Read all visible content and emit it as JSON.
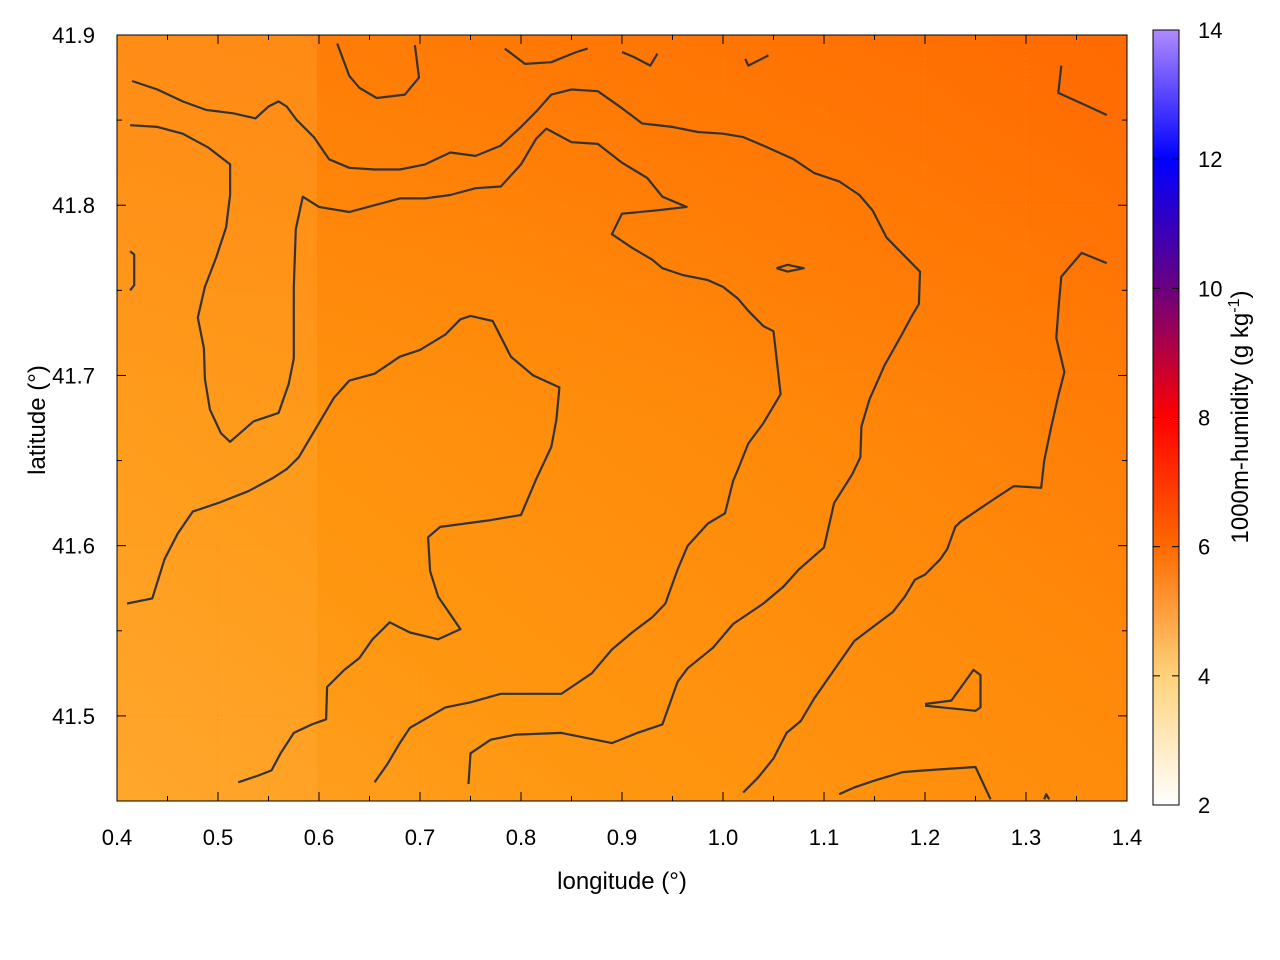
{
  "chart_data": {
    "type": "heatmap",
    "title": "",
    "xlabel": "longitude (°)",
    "ylabel": "latitude (°)",
    "colorbar_label_main": "1000m-humidity (g kg",
    "colorbar_label_exp": "-1",
    "colorbar_label_end": ")",
    "xlim": [
      0.4,
      1.4
    ],
    "ylim": [
      41.45,
      41.9
    ],
    "x_ticks": [
      0.4,
      0.5,
      0.6,
      0.7,
      0.8,
      0.9,
      1.0,
      1.1,
      1.2,
      1.3,
      1.4
    ],
    "x_tick_labels": [
      "0.4",
      "0.5",
      "0.6",
      "0.7",
      "0.8",
      "0.9",
      "1.0",
      "1.1",
      "1.2",
      "1.3",
      "1.4"
    ],
    "y_ticks": [
      41.5,
      41.6,
      41.7,
      41.8,
      41.9
    ],
    "y_tick_labels": [
      "41.5",
      "41.6",
      "41.7",
      "41.8",
      "41.9"
    ],
    "colorbar_range": [
      2,
      14
    ],
    "colorbar_ticks": [
      2,
      4,
      6,
      8,
      10,
      12,
      14
    ],
    "colorbar_tick_labels": [
      "2",
      "4",
      "6",
      "8",
      "10",
      "12",
      "14"
    ],
    "grid": true,
    "colors": {
      "scale": [
        "#ffffff",
        "#ffb000",
        "#ff6a00",
        "#ff0000",
        "#6a0080",
        "#0000ff",
        "#b888ff"
      ],
      "contour": "#333333",
      "grid": "#a0a0a0"
    },
    "field_description_samples": [
      {
        "lon": 0.42,
        "lat": 41.6,
        "value": 4.8
      },
      {
        "lon": 0.55,
        "lat": 41.5,
        "value": 5.0
      },
      {
        "lon": 0.75,
        "lat": 41.7,
        "value": 5.8
      },
      {
        "lon": 1.0,
        "lat": 41.85,
        "value": 6.5
      },
      {
        "lon": 1.3,
        "lat": 41.85,
        "value": 6.6
      },
      {
        "lon": 1.3,
        "lat": 41.5,
        "value": 6.2
      }
    ],
    "contours": [
      [
        [
          0.415,
          41.873
        ],
        [
          0.44,
          41.868
        ],
        [
          0.465,
          41.861
        ],
        [
          0.488,
          41.856
        ],
        [
          0.515,
          41.854
        ],
        [
          0.537,
          41.851
        ],
        [
          0.55,
          41.858
        ],
        [
          0.56,
          41.861
        ],
        [
          0.568,
          41.858
        ],
        [
          0.578,
          41.85
        ],
        [
          0.595,
          41.84
        ],
        [
          0.61,
          41.827
        ],
        [
          0.63,
          41.822
        ],
        [
          0.655,
          41.821
        ],
        [
          0.68,
          41.821
        ],
        [
          0.705,
          41.824
        ],
        [
          0.73,
          41.831
        ],
        [
          0.755,
          41.829
        ],
        [
          0.78,
          41.835
        ],
        [
          0.8,
          41.846
        ],
        [
          0.815,
          41.855
        ],
        [
          0.83,
          41.865
        ],
        [
          0.85,
          41.868
        ],
        [
          0.876,
          41.867
        ],
        [
          0.9,
          41.857
        ],
        [
          0.92,
          41.848
        ],
        [
          0.95,
          41.846
        ],
        [
          0.975,
          41.843
        ],
        [
          1.0,
          41.842
        ],
        [
          1.02,
          41.84
        ],
        [
          1.04,
          41.835
        ],
        [
          1.07,
          41.827
        ],
        [
          1.09,
          41.819
        ],
        [
          1.115,
          41.814
        ],
        [
          1.135,
          41.806
        ],
        [
          1.148,
          41.797
        ],
        [
          1.162,
          41.781
        ],
        [
          1.185,
          41.767
        ],
        [
          1.195,
          41.761
        ],
        [
          1.194,
          41.742
        ],
        [
          1.186,
          41.734
        ],
        [
          1.177,
          41.724
        ],
        [
          1.16,
          41.706
        ],
        [
          1.145,
          41.686
        ],
        [
          1.137,
          41.67
        ],
        [
          1.136,
          41.652
        ],
        [
          1.128,
          41.642
        ],
        [
          1.11,
          41.625
        ],
        [
          1.1,
          41.599
        ],
        [
          1.075,
          41.586
        ],
        [
          1.06,
          41.576
        ],
        [
          1.04,
          41.566
        ],
        [
          1.01,
          41.554
        ],
        [
          0.99,
          41.54
        ],
        [
          0.965,
          41.528
        ],
        [
          0.955,
          41.52
        ],
        [
          0.94,
          41.495
        ],
        [
          0.915,
          41.49
        ],
        [
          0.89,
          41.484
        ],
        [
          0.84,
          41.49
        ],
        [
          0.795,
          41.489
        ],
        [
          0.77,
          41.486
        ],
        [
          0.75,
          41.478
        ],
        [
          0.748,
          41.46
        ]
      ],
      [
        [
          0.413,
          41.847
        ],
        [
          0.44,
          41.846
        ],
        [
          0.465,
          41.842
        ],
        [
          0.49,
          41.834
        ],
        [
          0.512,
          41.824
        ],
        [
          0.512,
          41.806
        ],
        [
          0.508,
          41.787
        ],
        [
          0.498,
          41.769
        ],
        [
          0.487,
          41.752
        ],
        [
          0.48,
          41.734
        ],
        [
          0.486,
          41.716
        ],
        [
          0.487,
          41.698
        ],
        [
          0.492,
          41.68
        ],
        [
          0.503,
          41.666
        ],
        [
          0.512,
          41.661
        ],
        [
          0.535,
          41.673
        ],
        [
          0.56,
          41.678
        ],
        [
          0.57,
          41.695
        ],
        [
          0.575,
          41.71
        ],
        [
          0.575,
          41.752
        ],
        [
          0.577,
          41.786
        ],
        [
          0.584,
          41.805
        ],
        [
          0.6,
          41.799
        ],
        [
          0.63,
          41.796
        ],
        [
          0.655,
          41.8
        ],
        [
          0.68,
          41.804
        ],
        [
          0.705,
          41.804
        ],
        [
          0.73,
          41.806
        ],
        [
          0.755,
          41.81
        ],
        [
          0.78,
          41.811
        ],
        [
          0.8,
          41.824
        ],
        [
          0.815,
          41.839
        ],
        [
          0.825,
          41.845
        ],
        [
          0.85,
          41.837
        ],
        [
          0.876,
          41.836
        ],
        [
          0.9,
          41.825
        ],
        [
          0.925,
          41.816
        ],
        [
          0.94,
          41.805
        ],
        [
          0.964,
          41.799
        ],
        [
          0.935,
          41.797
        ],
        [
          0.9,
          41.795
        ],
        [
          0.89,
          41.783
        ],
        [
          0.91,
          41.775
        ],
        [
          0.93,
          41.768
        ],
        [
          0.94,
          41.763
        ],
        [
          0.96,
          41.759
        ],
        [
          0.985,
          41.756
        ],
        [
          1.0,
          41.752
        ],
        [
          1.015,
          41.745
        ],
        [
          1.025,
          41.738
        ],
        [
          1.04,
          41.729
        ],
        [
          1.05,
          41.726
        ],
        [
          1.057,
          41.689
        ],
        [
          1.04,
          41.672
        ],
        [
          1.025,
          41.66
        ],
        [
          1.015,
          41.645
        ],
        [
          1.01,
          41.638
        ],
        [
          1.002,
          41.619
        ],
        [
          0.985,
          41.613
        ],
        [
          0.965,
          41.6
        ],
        [
          0.955,
          41.586
        ],
        [
          0.943,
          41.566
        ],
        [
          0.93,
          41.558
        ],
        [
          0.91,
          41.549
        ],
        [
          0.89,
          41.539
        ],
        [
          0.87,
          41.525
        ],
        [
          0.85,
          41.517
        ],
        [
          0.84,
          41.513
        ],
        [
          0.78,
          41.513
        ],
        [
          0.75,
          41.508
        ],
        [
          0.725,
          41.505
        ],
        [
          0.69,
          41.493
        ],
        [
          0.68,
          41.484
        ],
        [
          0.668,
          41.472
        ],
        [
          0.655,
          41.461
        ]
      ],
      [
        [
          0.41,
          41.566
        ],
        [
          0.435,
          41.569
        ],
        [
          0.447,
          41.592
        ],
        [
          0.46,
          41.607
        ],
        [
          0.475,
          41.62
        ],
        [
          0.5,
          41.625
        ],
        [
          0.53,
          41.632
        ],
        [
          0.555,
          41.64
        ],
        [
          0.568,
          41.645
        ],
        [
          0.58,
          41.652
        ],
        [
          0.6,
          41.672
        ],
        [
          0.615,
          41.687
        ],
        [
          0.63,
          41.697
        ],
        [
          0.655,
          41.701
        ],
        [
          0.68,
          41.711
        ],
        [
          0.7,
          41.715
        ],
        [
          0.725,
          41.724
        ],
        [
          0.74,
          41.733
        ],
        [
          0.75,
          41.735
        ],
        [
          0.772,
          41.732
        ],
        [
          0.79,
          41.711
        ],
        [
          0.812,
          41.7
        ],
        [
          0.838,
          41.693
        ],
        [
          0.835,
          41.674
        ],
        [
          0.83,
          41.658
        ],
        [
          0.815,
          41.639
        ],
        [
          0.8,
          41.618
        ],
        [
          0.77,
          41.615
        ],
        [
          0.745,
          41.613
        ],
        [
          0.72,
          41.611
        ],
        [
          0.708,
          41.605
        ],
        [
          0.71,
          41.585
        ],
        [
          0.718,
          41.57
        ],
        [
          0.74,
          41.551
        ],
        [
          0.718,
          41.545
        ],
        [
          0.69,
          41.549
        ],
        [
          0.67,
          41.555
        ],
        [
          0.653,
          41.545
        ],
        [
          0.64,
          41.534
        ],
        [
          0.625,
          41.527
        ],
        [
          0.608,
          41.517
        ],
        [
          0.607,
          41.498
        ],
        [
          0.593,
          41.495
        ],
        [
          0.575,
          41.49
        ],
        [
          0.562,
          41.478
        ],
        [
          0.553,
          41.468
        ],
        [
          0.54,
          41.465
        ],
        [
          0.52,
          41.461
        ]
      ],
      [
        [
          0.618,
          41.895
        ],
        [
          0.63,
          41.876
        ],
        [
          0.64,
          41.869
        ],
        [
          0.657,
          41.863
        ],
        [
          0.685,
          41.865
        ],
        [
          0.699,
          41.875
        ],
        [
          0.695,
          41.894
        ]
      ],
      [
        [
          0.784,
          41.892
        ],
        [
          0.804,
          41.883
        ],
        [
          0.83,
          41.884
        ],
        [
          0.855,
          41.89
        ],
        [
          0.866,
          41.892
        ]
      ],
      [
        [
          0.9,
          41.89
        ],
        [
          0.912,
          41.887
        ],
        [
          0.928,
          41.882
        ],
        [
          0.935,
          41.889
        ]
      ],
      [
        [
          1.022,
          41.886
        ],
        [
          1.025,
          41.882
        ],
        [
          1.045,
          41.888
        ]
      ],
      [
        [
          0.413,
          41.773
        ],
        [
          0.417,
          41.771
        ],
        [
          0.417,
          41.753
        ],
        [
          0.413,
          41.75
        ]
      ],
      [
        [
          1.053,
          41.763
        ],
        [
          1.064,
          41.765
        ],
        [
          1.08,
          41.763
        ],
        [
          1.064,
          41.761
        ],
        [
          1.053,
          41.763
        ]
      ],
      [
        [
          1.335,
          41.882
        ],
        [
          1.332,
          41.866
        ],
        [
          1.358,
          41.859
        ],
        [
          1.38,
          41.853
        ]
      ],
      [
        [
          1.38,
          41.766
        ],
        [
          1.355,
          41.772
        ],
        [
          1.335,
          41.758
        ],
        [
          1.332,
          41.738
        ],
        [
          1.33,
          41.722
        ],
        [
          1.338,
          41.702
        ],
        [
          1.332,
          41.688
        ],
        [
          1.325,
          41.67
        ],
        [
          1.318,
          41.65
        ],
        [
          1.315,
          41.634
        ],
        [
          1.288,
          41.635
        ],
        [
          1.27,
          41.628
        ],
        [
          1.255,
          41.622
        ],
        [
          1.235,
          41.614
        ],
        [
          1.23,
          41.611
        ],
        [
          1.222,
          41.598
        ],
        [
          1.215,
          41.592
        ],
        [
          1.2,
          41.583
        ],
        [
          1.19,
          41.58
        ],
        [
          1.18,
          41.57
        ],
        [
          1.168,
          41.561
        ],
        [
          1.15,
          41.553
        ],
        [
          1.13,
          41.544
        ],
        [
          1.11,
          41.527
        ],
        [
          1.09,
          41.51
        ],
        [
          1.077,
          41.497
        ],
        [
          1.063,
          41.49
        ],
        [
          1.05,
          41.475
        ],
        [
          1.035,
          41.464
        ],
        [
          1.02,
          41.455
        ]
      ],
      [
        [
          1.2,
          41.507
        ],
        [
          1.226,
          41.509
        ],
        [
          1.248,
          41.527
        ],
        [
          1.255,
          41.524
        ],
        [
          1.255,
          41.505
        ],
        [
          1.25,
          41.503
        ],
        [
          1.2,
          41.506
        ]
      ],
      [
        [
          1.115,
          41.454
        ],
        [
          1.13,
          41.458
        ],
        [
          1.15,
          41.462
        ],
        [
          1.178,
          41.467
        ],
        [
          1.2,
          41.468
        ],
        [
          1.25,
          41.47
        ],
        [
          1.265,
          41.451
        ]
      ],
      [
        [
          1.318,
          41.451
        ],
        [
          1.32,
          41.454
        ],
        [
          1.323,
          41.451
        ]
      ]
    ]
  }
}
